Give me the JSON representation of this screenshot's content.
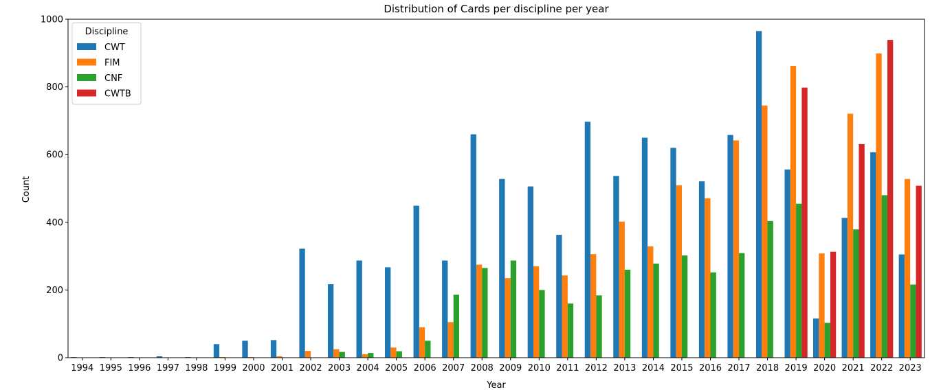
{
  "chart_data": {
    "type": "bar",
    "title": "Distribution of Cards per discipline per year",
    "xlabel": "Year",
    "ylabel": "Count",
    "ylim": [
      0,
      1000
    ],
    "yticks": [
      0,
      200,
      400,
      600,
      800,
      1000
    ],
    "grid": false,
    "legend": {
      "title": "Discipline",
      "placement": "top-left"
    },
    "categories": [
      "1994",
      "1995",
      "1996",
      "1997",
      "1998",
      "1999",
      "2000",
      "2001",
      "2002",
      "2003",
      "2004",
      "2005",
      "2006",
      "2007",
      "2008",
      "2009",
      "2010",
      "2011",
      "2012",
      "2013",
      "2014",
      "2015",
      "2016",
      "2017",
      "2018",
      "2019",
      "2020",
      "2021",
      "2022",
      "2023"
    ],
    "series": [
      {
        "name": "CWT",
        "color": "#1f77b4",
        "values": [
          2,
          2,
          2,
          4,
          2,
          40,
          50,
          52,
          322,
          217,
          287,
          267,
          449,
          287,
          660,
          528,
          506,
          363,
          697,
          537,
          650,
          620,
          521,
          658,
          965,
          556,
          116,
          413,
          607,
          305
        ]
      },
      {
        "name": "FIM",
        "color": "#ff7f0e",
        "values": [
          0,
          0,
          0,
          0,
          0,
          2,
          2,
          4,
          20,
          25,
          10,
          30,
          90,
          105,
          275,
          235,
          270,
          243,
          306,
          402,
          329,
          509,
          471,
          642,
          745,
          862,
          308,
          721,
          899,
          528
        ]
      },
      {
        "name": "CNF",
        "color": "#2ca02c",
        "values": [
          0,
          0,
          0,
          0,
          0,
          0,
          0,
          0,
          0,
          17,
          14,
          19,
          50,
          186,
          265,
          287,
          200,
          160,
          184,
          260,
          278,
          302,
          252,
          309,
          404,
          455,
          103,
          379,
          480,
          216
        ]
      },
      {
        "name": "CWTB",
        "color": "#d62728",
        "values": [
          0,
          0,
          0,
          0,
          0,
          0,
          0,
          0,
          0,
          0,
          0,
          0,
          0,
          0,
          0,
          0,
          0,
          0,
          0,
          0,
          0,
          0,
          0,
          0,
          0,
          798,
          313,
          631,
          939,
          508
        ]
      }
    ]
  }
}
